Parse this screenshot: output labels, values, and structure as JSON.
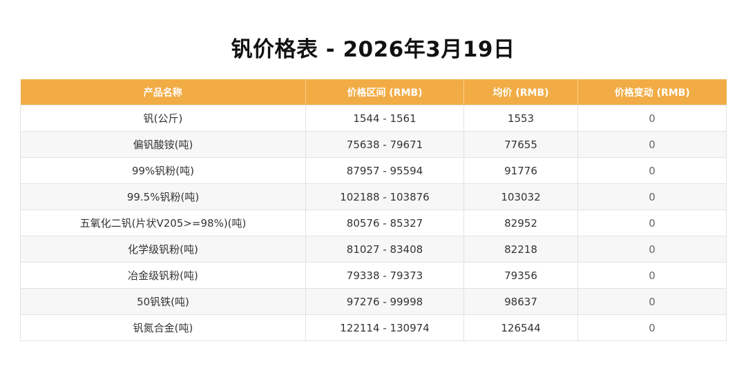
{
  "title": "钒价格表 - 2026年3月19日",
  "table": {
    "headers": [
      "产品名称",
      "价格区间 (RMB)",
      "均价 (RMB)",
      "价格变动 (RMB)"
    ],
    "rows": [
      [
        "钒(公斤)",
        "1544 - 1561",
        "1553",
        "0"
      ],
      [
        "偏钒酸铵(吨)",
        "75638 - 79671",
        "77655",
        "0"
      ],
      [
        "99%钒粉(吨)",
        "87957 - 95594",
        "91776",
        "0"
      ],
      [
        "99.5%钒粉(吨)",
        "102188 - 103876",
        "103032",
        "0"
      ],
      [
        "五氧化二钒(片状V205>=98%)(吨)",
        "80576 - 85327",
        "82952",
        "0"
      ],
      [
        "化学级钒粉(吨)",
        "81027 - 83408",
        "82218",
        "0"
      ],
      [
        "冶金级钒粉(吨)",
        "79338 - 79373",
        "79356",
        "0"
      ],
      [
        "50钒铁(吨)",
        "97276 - 99998",
        "98637",
        "0"
      ],
      [
        "钒氮合金(吨)",
        "122114 - 130974",
        "126544",
        "0"
      ]
    ]
  },
  "colors": {
    "header_bg": "#f2ac45",
    "header_text": "#ffffff",
    "stripe_bg": "#f7f7f7"
  }
}
